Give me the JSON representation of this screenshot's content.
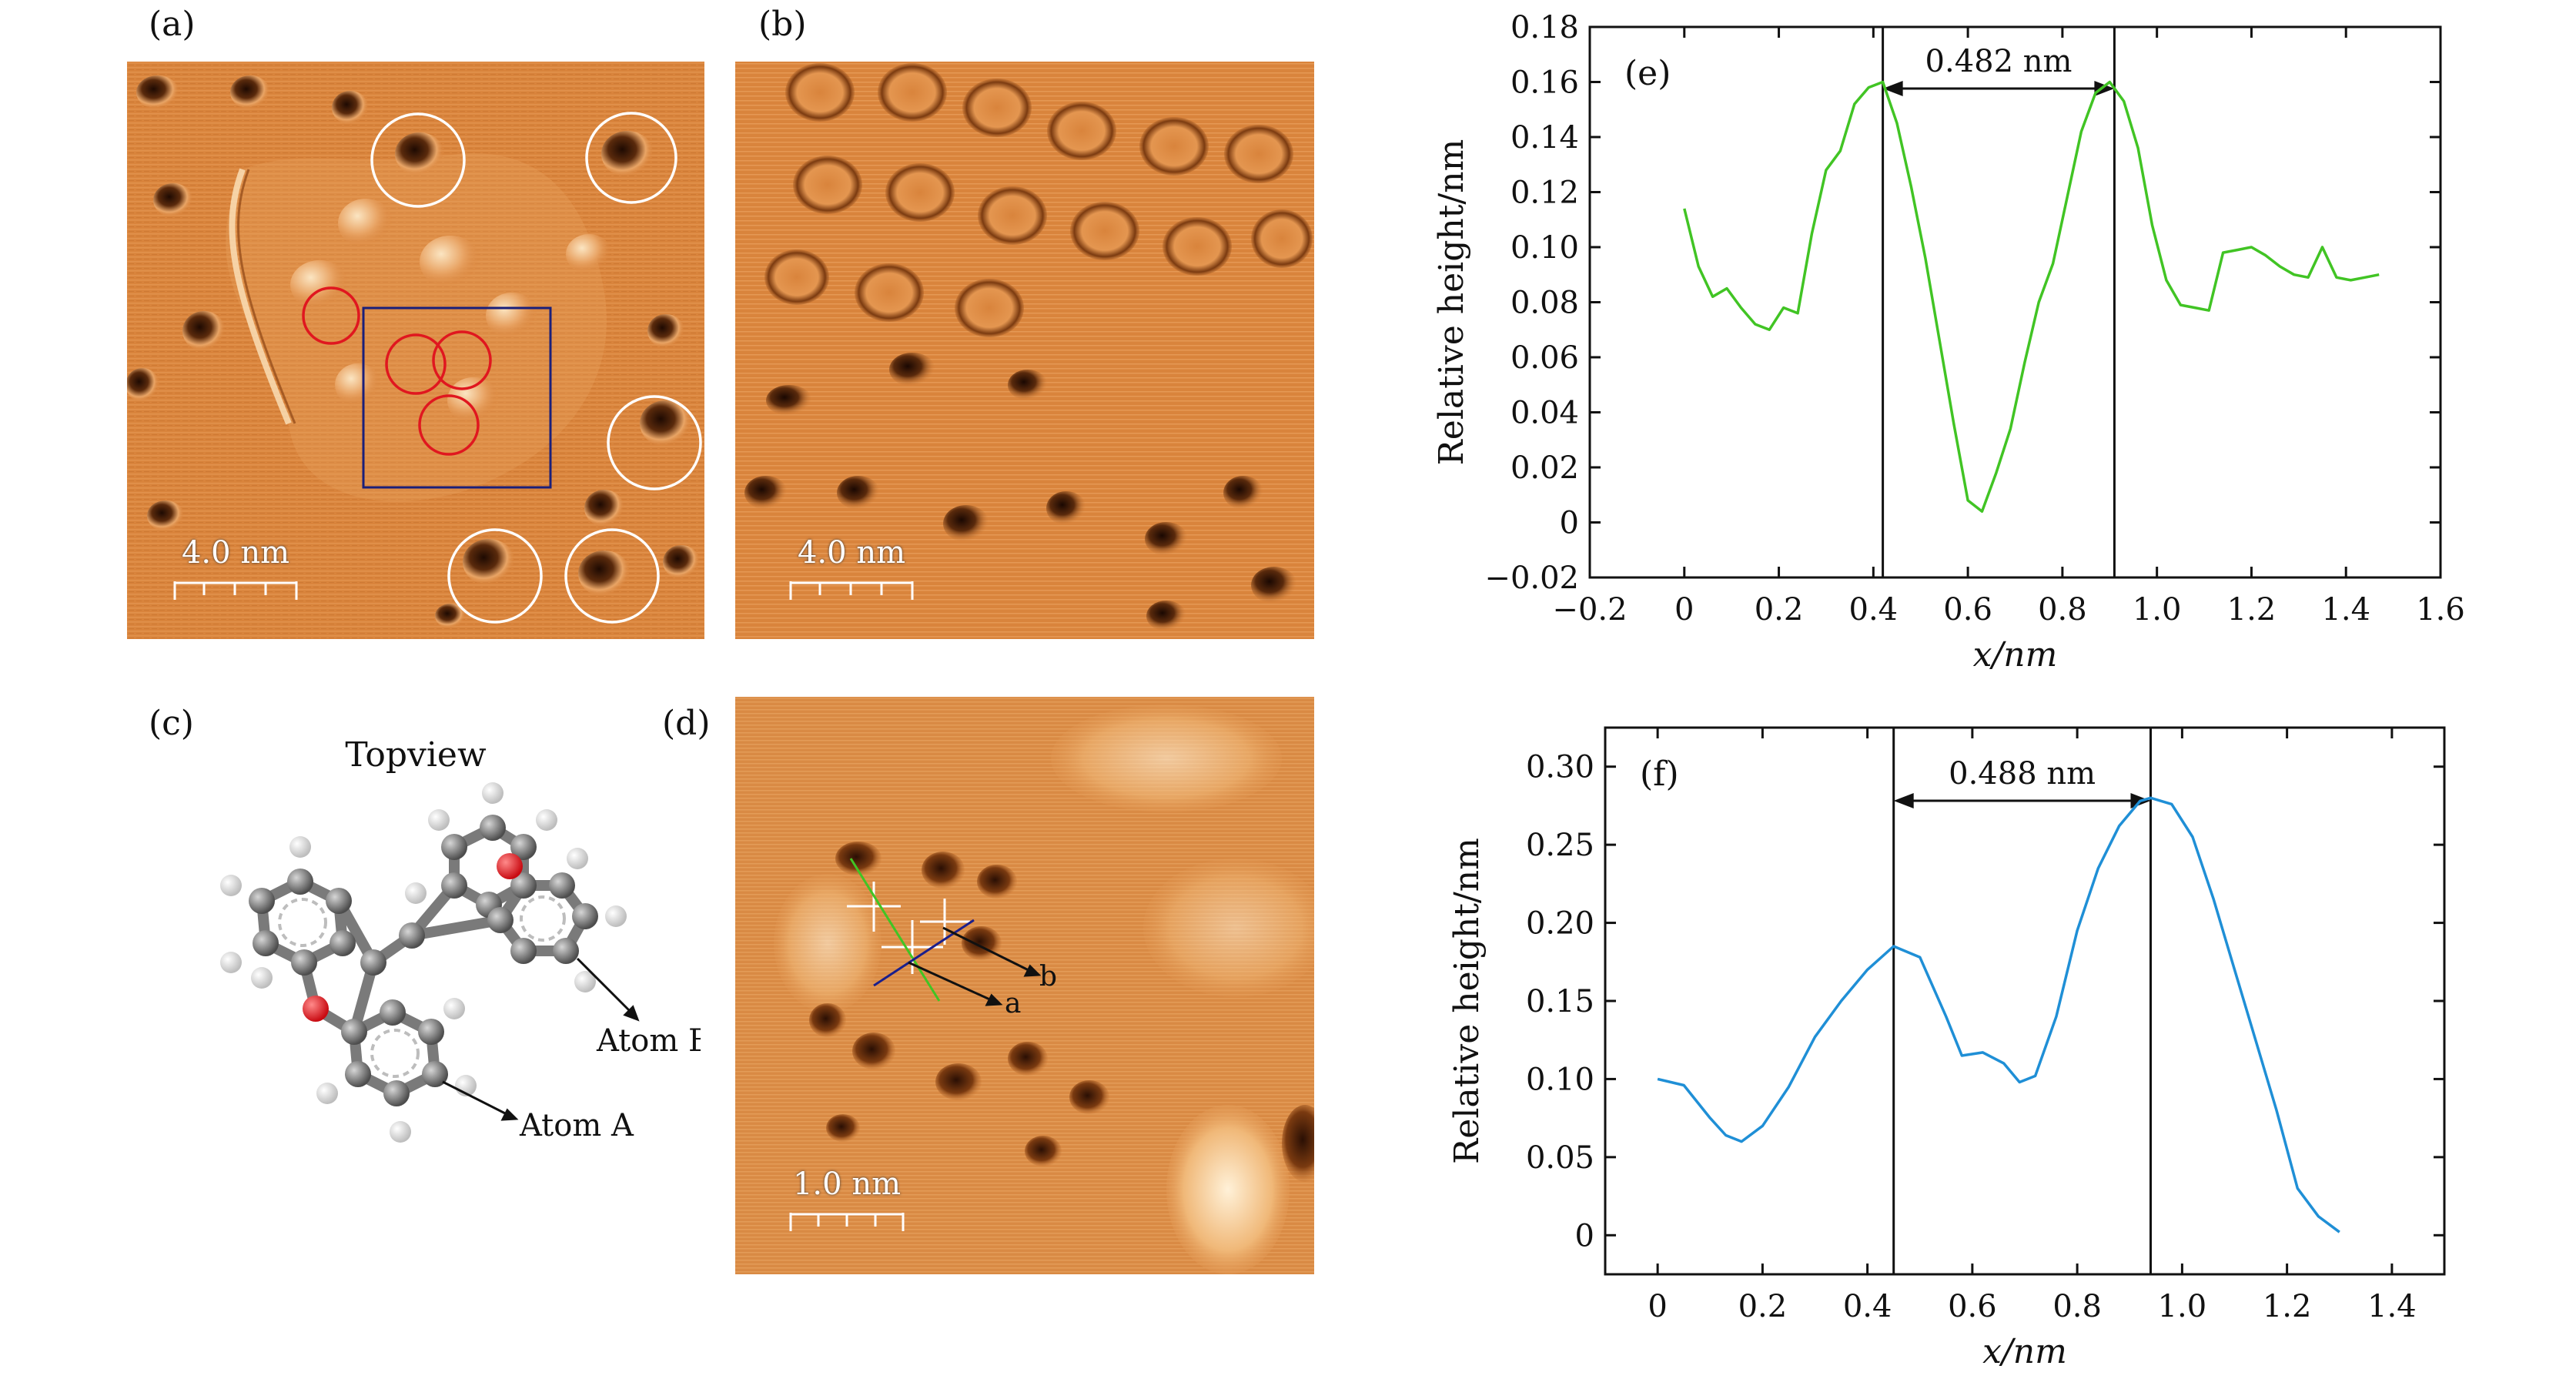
{
  "panels": {
    "a": {
      "label": "(a)",
      "scale": "4.0 nm"
    },
    "b": {
      "label": "(b)",
      "scale": "4.0 nm"
    },
    "c": {
      "label": "(c)",
      "title": "Topview",
      "atom_b": "Atom B",
      "atom_a": "Atom A"
    },
    "d": {
      "label": "(d)",
      "scale": "1.0 nm",
      "line_a": "a",
      "line_b": "b"
    }
  },
  "colors": {
    "stm_base": "#d9843c",
    "stm_light": "#f6d5a5",
    "stm_dark": "#3a1606",
    "circle_red": "#e0171f",
    "circle_white": "#ffffff",
    "box_blue": "#1a1f7a",
    "line_green": "#41c424",
    "line_blue": "#1f77c8",
    "line_navy": "#1a1f8c",
    "carbon": "#7a7a7a",
    "oxygen": "#e8121a",
    "hydrogen": "#f2f2f2"
  },
  "chart_data": [
    {
      "type": "line",
      "panel_label": "(e)",
      "xlabel": "x/nm",
      "ylabel": "Relative height/nm",
      "xlim": [
        -0.2,
        1.6
      ],
      "ylim": [
        -0.02,
        0.18
      ],
      "xticks": [
        "−0.2",
        "0",
        "0.2",
        "0.4",
        "0.6",
        "0.8",
        "1.0",
        "1.2",
        "1.4",
        "1.6"
      ],
      "yticks": [
        "−0.02",
        "0",
        "0.02",
        "0.04",
        "0.06",
        "0.08",
        "0.10",
        "0.12",
        "0.14",
        "0.16",
        "0.18"
      ],
      "annotation": "0.482 nm",
      "vlines": [
        0.42,
        0.91
      ],
      "series": [
        {
          "color": "#41c424",
          "x": [
            0.0,
            0.03,
            0.06,
            0.09,
            0.12,
            0.15,
            0.18,
            0.21,
            0.24,
            0.27,
            0.3,
            0.33,
            0.36,
            0.39,
            0.42,
            0.45,
            0.48,
            0.51,
            0.54,
            0.57,
            0.6,
            0.63,
            0.66,
            0.69,
            0.72,
            0.75,
            0.78,
            0.81,
            0.84,
            0.87,
            0.9,
            0.93,
            0.96,
            0.99,
            1.02,
            1.05,
            1.08,
            1.11,
            1.14,
            1.17,
            1.2,
            1.23,
            1.26,
            1.29,
            1.32,
            1.35,
            1.38,
            1.41,
            1.44,
            1.47
          ],
          "y": [
            0.114,
            0.093,
            0.082,
            0.085,
            0.078,
            0.072,
            0.07,
            0.078,
            0.076,
            0.105,
            0.128,
            0.135,
            0.152,
            0.158,
            0.16,
            0.145,
            0.122,
            0.096,
            0.066,
            0.036,
            0.008,
            0.004,
            0.018,
            0.034,
            0.058,
            0.08,
            0.094,
            0.118,
            0.142,
            0.156,
            0.16,
            0.153,
            0.136,
            0.108,
            0.088,
            0.079,
            0.078,
            0.077,
            0.098,
            0.099,
            0.1,
            0.097,
            0.093,
            0.09,
            0.089,
            0.1,
            0.089,
            0.088,
            0.089,
            0.09
          ]
        }
      ]
    },
    {
      "type": "line",
      "panel_label": "(f)",
      "xlabel": "x/nm",
      "ylabel": "Relative height/nm",
      "xlim": [
        -0.1,
        1.5
      ],
      "ylim": [
        -0.025,
        0.325
      ],
      "xticks": [
        "0",
        "0.2",
        "0.4",
        "0.6",
        "0.8",
        "1.0",
        "1.2",
        "1.4"
      ],
      "yticks": [
        "0",
        "0.05",
        "0.10",
        "0.15",
        "0.20",
        "0.25",
        "0.30"
      ],
      "annotation": "0.488 nm",
      "vlines": [
        0.45,
        0.94
      ],
      "series": [
        {
          "color": "#1f8fd6",
          "x": [
            0.0,
            0.05,
            0.1,
            0.13,
            0.16,
            0.2,
            0.25,
            0.3,
            0.35,
            0.4,
            0.45,
            0.5,
            0.55,
            0.58,
            0.62,
            0.66,
            0.69,
            0.72,
            0.76,
            0.8,
            0.84,
            0.88,
            0.92,
            0.94,
            0.98,
            1.02,
            1.06,
            1.1,
            1.14,
            1.18,
            1.22,
            1.26,
            1.3
          ],
          "y": [
            0.1,
            0.096,
            0.075,
            0.064,
            0.06,
            0.07,
            0.095,
            0.127,
            0.15,
            0.17,
            0.185,
            0.178,
            0.14,
            0.115,
            0.117,
            0.11,
            0.098,
            0.102,
            0.14,
            0.195,
            0.235,
            0.262,
            0.278,
            0.28,
            0.276,
            0.255,
            0.215,
            0.17,
            0.125,
            0.08,
            0.03,
            0.012,
            0.002
          ]
        }
      ]
    }
  ]
}
